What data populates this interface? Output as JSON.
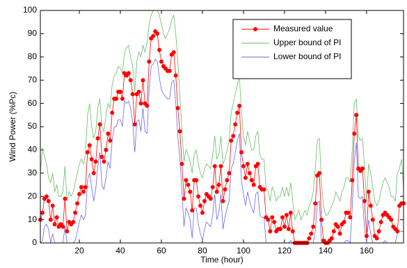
{
  "chart_data": {
    "type": "line",
    "x_label": "Time (hour)",
    "y_label": "Wind Power (%Pc)",
    "xlim": [
      1,
      178
    ],
    "ylim": [
      0,
      100
    ],
    "xticks": [
      20,
      40,
      60,
      80,
      100,
      120,
      140,
      160
    ],
    "yticks": [
      0,
      10,
      20,
      30,
      40,
      50,
      60,
      70,
      80,
      90,
      100
    ],
    "legend": "upper-right",
    "x": [
      1,
      2,
      3,
      4,
      5,
      6,
      7,
      8,
      9,
      10,
      11,
      12,
      13,
      14,
      15,
      16,
      17,
      18,
      19,
      20,
      21,
      22,
      23,
      24,
      25,
      26,
      27,
      28,
      29,
      30,
      31,
      32,
      33,
      34,
      35,
      36,
      37,
      38,
      39,
      40,
      41,
      42,
      43,
      44,
      45,
      46,
      47,
      48,
      49,
      50,
      51,
      52,
      53,
      54,
      55,
      56,
      57,
      58,
      59,
      60,
      61,
      62,
      63,
      64,
      65,
      66,
      67,
      68,
      69,
      70,
      71,
      72,
      73,
      74,
      75,
      76,
      77,
      78,
      79,
      80,
      81,
      82,
      83,
      84,
      85,
      86,
      87,
      88,
      89,
      90,
      91,
      92,
      93,
      94,
      95,
      96,
      97,
      98,
      99,
      100,
      101,
      102,
      103,
      104,
      105,
      106,
      107,
      108,
      109,
      110,
      111,
      112,
      113,
      114,
      115,
      116,
      117,
      118,
      119,
      120,
      121,
      122,
      123,
      124,
      125,
      126,
      127,
      128,
      129,
      130,
      131,
      132,
      133,
      134,
      135,
      136,
      137,
      138,
      139,
      140,
      141,
      142,
      143,
      144,
      145,
      146,
      147,
      148,
      149,
      150,
      151,
      152,
      153,
      154,
      155,
      156,
      157,
      158,
      159,
      160,
      161,
      162,
      163,
      164,
      165,
      166,
      167,
      168,
      169,
      170,
      171,
      172,
      173,
      174,
      175,
      176,
      177,
      178
    ],
    "series": [
      {
        "name": "Measured value",
        "color": "#ff0000",
        "markers": true,
        "values": [
          10,
          13,
          19,
          20,
          18,
          10,
          16,
          8,
          11,
          7,
          8,
          7,
          19,
          5,
          9,
          8,
          9,
          13,
          17,
          21,
          24,
          22,
          24,
          39,
          42,
          36,
          30,
          35,
          45,
          51,
          37,
          35,
          40,
          47,
          44,
          56,
          62,
          62,
          65,
          65,
          62,
          73,
          72,
          73,
          70,
          64,
          51,
          64,
          65,
          60,
          70,
          60,
          59,
          78,
          88,
          89,
          91,
          90,
          83,
          78,
          76,
          75,
          74,
          74,
          81,
          82,
          72,
          58,
          48,
          34,
          19,
          27,
          25,
          22,
          14,
          27,
          27,
          20,
          16,
          13,
          18,
          21,
          20,
          19,
          24,
          33,
          22,
          25,
          33,
          18,
          23,
          27,
          30,
          44,
          46,
          51,
          56,
          59,
          39,
          33,
          28,
          34,
          30,
          27,
          25,
          33,
          34,
          24,
          23,
          23,
          11,
          10,
          5,
          11,
          9,
          5,
          6,
          6,
          11,
          7,
          12,
          6,
          13,
          5,
          0,
          0,
          0,
          0,
          0,
          0,
          0,
          2,
          4,
          7,
          17,
          29,
          30,
          10,
          1,
          0,
          0,
          1,
          2,
          5,
          8,
          7,
          4,
          8,
          9,
          13,
          13,
          11,
          27,
          47,
          55,
          32,
          31,
          32,
          18,
          3,
          22,
          16,
          10,
          3,
          2,
          5,
          9,
          12,
          13,
          12,
          11,
          10,
          7,
          6,
          5,
          16,
          17,
          17
        ]
      },
      {
        "name": "Upper bound of PI",
        "color": "#66bb66",
        "markers": false,
        "values": [
          30,
          41,
          37,
          34,
          28,
          26,
          30,
          22,
          25,
          20,
          20,
          22,
          33,
          18,
          22,
          20,
          22,
          26,
          30,
          34,
          36,
          34,
          38,
          55,
          60,
          50,
          45,
          48,
          58,
          62,
          50,
          48,
          55,
          60,
          58,
          68,
          72,
          73,
          76,
          75,
          73,
          82,
          84,
          85,
          80,
          76,
          65,
          78,
          82,
          80,
          85,
          82,
          86,
          94,
          98,
          100,
          100,
          100,
          98,
          94,
          90,
          88,
          90,
          92,
          96,
          98,
          90,
          78,
          64,
          48,
          35,
          40,
          38,
          35,
          30,
          38,
          40,
          34,
          30,
          28,
          32,
          34,
          33,
          32,
          38,
          46,
          36,
          38,
          46,
          34,
          36,
          40,
          44,
          56,
          60,
          64,
          68,
          72,
          56,
          46,
          42,
          48,
          44,
          40,
          40,
          46,
          48,
          38,
          36,
          36,
          24,
          22,
          18,
          24,
          22,
          18,
          20,
          20,
          24,
          20,
          24,
          20,
          26,
          18,
          10,
          12,
          14,
          10,
          12,
          14,
          12,
          16,
          18,
          22,
          32,
          44,
          45,
          26,
          16,
          12,
          12,
          14,
          16,
          18,
          22,
          20,
          18,
          22,
          24,
          28,
          28,
          26,
          40,
          60,
          62,
          46,
          44,
          45,
          32,
          18,
          34,
          30,
          24,
          18,
          16,
          18,
          22,
          26,
          28,
          26,
          24,
          20,
          20,
          18,
          30,
          32,
          36,
          24
        ]
      },
      {
        "name": "Lower bound of PI",
        "color": "#6666ee",
        "markers": false,
        "values": [
          0,
          1,
          7,
          8,
          6,
          0,
          4,
          0,
          0,
          0,
          0,
          0,
          7,
          0,
          0,
          0,
          0,
          1,
          5,
          9,
          12,
          10,
          12,
          27,
          30,
          24,
          18,
          23,
          33,
          39,
          25,
          23,
          28,
          35,
          32,
          44,
          50,
          50,
          53,
          53,
          50,
          61,
          60,
          61,
          58,
          52,
          39,
          52,
          53,
          48,
          58,
          48,
          47,
          66,
          76,
          77,
          79,
          78,
          71,
          66,
          64,
          63,
          62,
          62,
          69,
          70,
          60,
          46,
          36,
          22,
          7,
          15,
          13,
          10,
          2,
          15,
          15,
          8,
          4,
          1,
          6,
          9,
          8,
          7,
          12,
          21,
          10,
          13,
          21,
          6,
          11,
          15,
          18,
          32,
          34,
          39,
          44,
          47,
          27,
          21,
          16,
          22,
          18,
          15,
          13,
          21,
          22,
          12,
          11,
          11,
          0,
          0,
          0,
          0,
          0,
          0,
          0,
          0,
          0,
          0,
          0,
          0,
          1,
          0,
          0,
          0,
          0,
          0,
          0,
          0,
          0,
          0,
          0,
          0,
          5,
          17,
          18,
          0,
          0,
          0,
          0,
          0,
          0,
          0,
          0,
          0,
          0,
          0,
          0,
          1,
          1,
          0,
          15,
          35,
          43,
          20,
          19,
          20,
          6,
          0,
          10,
          4,
          0,
          0,
          0,
          0,
          0,
          0,
          1,
          0,
          0,
          0,
          0,
          0,
          4,
          5,
          5,
          5
        ]
      }
    ]
  }
}
